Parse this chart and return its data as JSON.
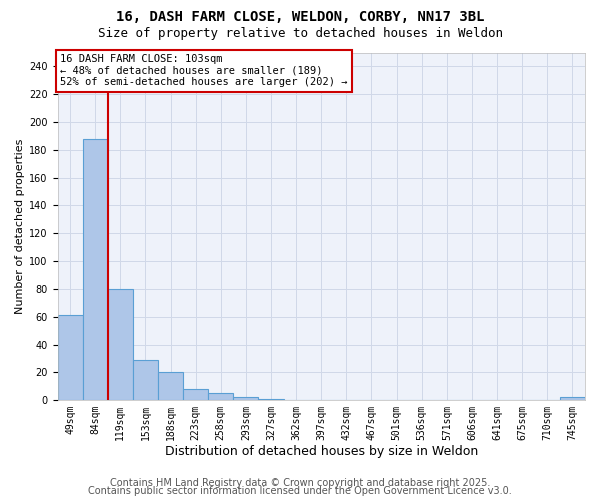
{
  "title_line1": "16, DASH FARM CLOSE, WELDON, CORBY, NN17 3BL",
  "title_line2": "Size of property relative to detached houses in Weldon",
  "xlabel": "Distribution of detached houses by size in Weldon",
  "ylabel": "Number of detached properties",
  "categories": [
    "49sqm",
    "84sqm",
    "119sqm",
    "153sqm",
    "188sqm",
    "223sqm",
    "258sqm",
    "293sqm",
    "327sqm",
    "362sqm",
    "397sqm",
    "432sqm",
    "467sqm",
    "501sqm",
    "536sqm",
    "571sqm",
    "606sqm",
    "641sqm",
    "675sqm",
    "710sqm",
    "745sqm"
  ],
  "values": [
    61,
    188,
    80,
    29,
    20,
    8,
    5,
    2,
    1,
    0,
    0,
    0,
    0,
    0,
    0,
    0,
    0,
    0,
    0,
    0,
    2
  ],
  "bar_color": "#aec6e8",
  "bar_edge_color": "#5a9fd4",
  "bar_edge_width": 0.8,
  "grid_color": "#d0d8e8",
  "background_color": "#eef2fa",
  "red_line_x": 1.5,
  "red_line_color": "#cc0000",
  "annotation_text": "16 DASH FARM CLOSE: 103sqm\n← 48% of detached houses are smaller (189)\n52% of semi-detached houses are larger (202) →",
  "annotation_box_color": "#cc0000",
  "ylim": [
    0,
    250
  ],
  "yticks": [
    0,
    20,
    40,
    60,
    80,
    100,
    120,
    140,
    160,
    180,
    200,
    220,
    240
  ],
  "footer_line1": "Contains HM Land Registry data © Crown copyright and database right 2025.",
  "footer_line2": "Contains public sector information licensed under the Open Government Licence v3.0.",
  "title_fontsize": 10,
  "subtitle_fontsize": 9,
  "xlabel_fontsize": 9,
  "ylabel_fontsize": 8,
  "tick_fontsize": 7,
  "footer_fontsize": 7,
  "annotation_fontsize": 7.5
}
